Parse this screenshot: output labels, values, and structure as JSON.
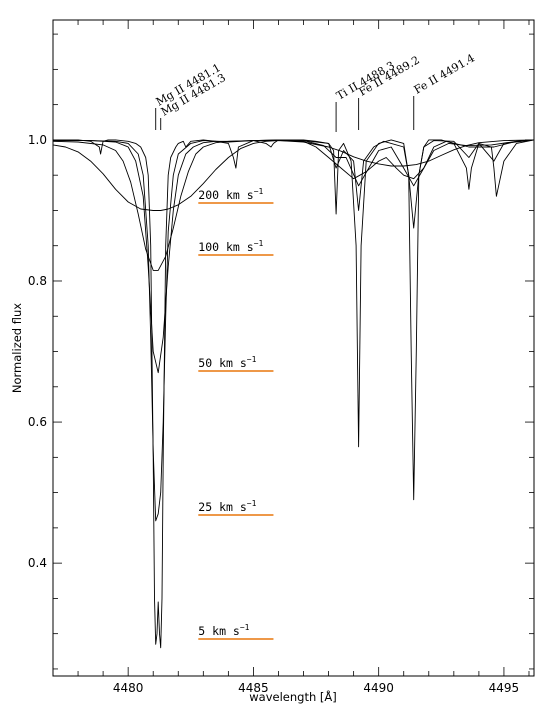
{
  "chart_data": {
    "type": "line",
    "xlabel": "wavelength [Å]",
    "ylabel": "Normalized flux",
    "xlim": [
      4477,
      4496.2
    ],
    "ylim": [
      0.24,
      1.17
    ],
    "xticks": [
      4480,
      4485,
      4490,
      4495
    ],
    "yticks": [
      0.4,
      0.6,
      0.8,
      1.0
    ],
    "ytick_labels": [
      "0.4",
      "0.6",
      "0.8",
      "1.0"
    ],
    "line_identifications": [
      {
        "label": "Mg II 4481.1",
        "wavelength": 4481.1
      },
      {
        "label": "Mg II 4481.3",
        "wavelength": 4481.3
      },
      {
        "label": "Ti II 4488.3",
        "wavelength": 4488.3
      },
      {
        "label": "Fe II 4489.2",
        "wavelength": 4489.2
      },
      {
        "label": "Fe II 4491.4",
        "wavelength": 4491.4
      }
    ],
    "velocity_labels": [
      {
        "text": "200 km s",
        "exp": "−1",
        "flux": 0.9,
        "color": "#e8760b"
      },
      {
        "text": "100 km s",
        "exp": "−1",
        "flux": 0.825,
        "color": "#e8760b"
      },
      {
        "text": "50 km s",
        "exp": "−1",
        "flux": 0.67,
        "color": "#e8760b"
      },
      {
        "text": "25 km s",
        "exp": "−1",
        "flux": 0.465,
        "color": "#e8760b"
      },
      {
        "text": "5 km s",
        "exp": "−1",
        "flux": 0.3,
        "color": "#e8760b"
      }
    ],
    "series": [
      {
        "vsini": 5,
        "x": [
          4477.0,
          4477.5,
          4478.0,
          4478.5,
          4478.85,
          4478.9,
          4478.95,
          4479.0,
          4479.2,
          4479.5,
          4480.0,
          4480.3,
          4480.5,
          4480.7,
          4480.8,
          4480.9,
          4481.0,
          4481.05,
          4481.1,
          4481.15,
          4481.2,
          4481.25,
          4481.3,
          4481.35,
          4481.4,
          4481.5,
          4481.6,
          4481.7,
          4481.9,
          4482.0,
          4482.2,
          4482.3,
          4482.5,
          4483.0,
          4483.5,
          4484.0,
          4484.2,
          4484.3,
          4484.4,
          4485.0,
          4485.5,
          4485.7,
          4485.8,
          4486.0,
          4486.5,
          4487.0,
          4487.5,
          4488.0,
          4488.2,
          4488.3,
          4488.4,
          4488.6,
          4488.9,
          4489.1,
          4489.2,
          4489.3,
          4489.5,
          4490.0,
          4490.5,
          4491.0,
          4491.2,
          4491.3,
          4491.4,
          4491.5,
          4491.6,
          4491.8,
          4492.0,
          4492.5,
          4493.0,
          4493.5,
          4493.6,
          4493.7,
          4494.0,
          4494.5,
          4494.6,
          4494.7,
          4495.0,
          4495.5,
          4496.2
        ],
        "y": [
          1.0,
          1.0,
          1.0,
          0.998,
          0.99,
          0.98,
          0.99,
          0.998,
          1.0,
          1.0,
          0.998,
          0.995,
          0.99,
          0.975,
          0.95,
          0.85,
          0.55,
          0.35,
          0.285,
          0.3,
          0.345,
          0.3,
          0.28,
          0.35,
          0.55,
          0.85,
          0.95,
          0.975,
          0.99,
          0.995,
          0.998,
          0.99,
          0.998,
          1.0,
          0.998,
          0.995,
          0.975,
          0.96,
          0.99,
          0.999,
          0.995,
          0.99,
          0.995,
          1.0,
          1.0,
          1.0,
          0.998,
          0.995,
          0.985,
          0.895,
          0.985,
          0.995,
          0.97,
          0.85,
          0.565,
          0.85,
          0.97,
          0.995,
          1.0,
          0.995,
          0.95,
          0.7,
          0.49,
          0.7,
          0.95,
          0.99,
          1.0,
          1.0,
          0.995,
          0.96,
          0.93,
          0.96,
          0.995,
          0.99,
          0.96,
          0.92,
          0.97,
          0.995,
          1.0
        ]
      },
      {
        "vsini": 25,
        "x": [
          4477.0,
          4478.5,
          4479.5,
          4480.0,
          4480.4,
          4480.6,
          4480.8,
          4480.9,
          4481.0,
          4481.1,
          4481.2,
          4481.3,
          4481.4,
          4481.5,
          4481.6,
          4481.8,
          4482.0,
          4482.5,
          4483.0,
          4484.0,
          4485.0,
          4486.0,
          4487.0,
          4488.0,
          4488.3,
          4488.6,
          4489.0,
          4489.2,
          4489.4,
          4489.8,
          4490.2,
          4491.0,
          4491.2,
          4491.4,
          4491.6,
          4491.8,
          4492.2,
          4493.0,
          4493.6,
          4494.0,
          4494.6,
          4495.0,
          4496.2
        ],
        "y": [
          1.0,
          0.999,
          0.998,
          0.995,
          0.98,
          0.95,
          0.85,
          0.72,
          0.56,
          0.46,
          0.47,
          0.5,
          0.6,
          0.75,
          0.87,
          0.95,
          0.98,
          0.995,
          0.999,
          0.997,
          0.999,
          1.0,
          0.999,
          0.995,
          0.96,
          0.985,
          0.97,
          0.9,
          0.97,
          0.99,
          0.998,
          0.99,
          0.95,
          0.875,
          0.95,
          0.99,
          0.999,
          0.998,
          0.975,
          0.995,
          0.97,
          0.995,
          1.0
        ]
      },
      {
        "vsini": 50,
        "x": [
          4477.0,
          4478.5,
          4479.5,
          4480.0,
          4480.3,
          4480.6,
          4480.8,
          4481.0,
          4481.2,
          4481.4,
          4481.6,
          4481.8,
          4482.0,
          4482.3,
          4482.6,
          4483.0,
          4483.5,
          4484.0,
          4485.0,
          4486.0,
          4487.0,
          4487.8,
          4488.3,
          4488.7,
          4489.2,
          4489.6,
          4490.0,
          4490.5,
          4491.0,
          4491.4,
          4491.8,
          4492.2,
          4492.7,
          4493.6,
          4494.6,
          4495.5,
          4496.2
        ],
        "y": [
          0.999,
          0.999,
          0.997,
          0.99,
          0.97,
          0.92,
          0.82,
          0.7,
          0.67,
          0.72,
          0.82,
          0.9,
          0.95,
          0.98,
          0.99,
          0.996,
          0.998,
          0.998,
          0.999,
          1.0,
          0.999,
          0.992,
          0.975,
          0.975,
          0.935,
          0.96,
          0.985,
          0.99,
          0.96,
          0.935,
          0.96,
          0.99,
          0.998,
          0.99,
          0.99,
          0.998,
          1.0
        ]
      },
      {
        "vsini": 100,
        "x": [
          4477.0,
          4478.0,
          4479.0,
          4479.5,
          4479.8,
          4480.1,
          4480.4,
          4480.7,
          4481.0,
          4481.2,
          4481.5,
          4481.8,
          4482.1,
          4482.4,
          4482.7,
          4483.0,
          4483.5,
          4484.0,
          4485.0,
          4486.0,
          4487.0,
          4487.5,
          4488.0,
          4488.5,
          4489.0,
          4489.5,
          4490.0,
          4490.3,
          4490.7,
          4491.0,
          4491.4,
          4491.8,
          4492.2,
          4492.8,
          4493.5,
          4494.5,
          4495.5,
          4496.2
        ],
        "y": [
          0.998,
          0.997,
          0.993,
          0.985,
          0.97,
          0.94,
          0.895,
          0.845,
          0.815,
          0.815,
          0.835,
          0.875,
          0.92,
          0.955,
          0.98,
          0.99,
          0.996,
          0.998,
          0.999,
          0.999,
          0.998,
          0.99,
          0.975,
          0.96,
          0.945,
          0.955,
          0.97,
          0.975,
          0.96,
          0.95,
          0.945,
          0.96,
          0.985,
          0.995,
          0.992,
          0.993,
          0.998,
          1.0
        ]
      },
      {
        "vsini": 200,
        "x": [
          4477.0,
          4477.5,
          4478.0,
          4478.5,
          4479.0,
          4479.5,
          4480.0,
          4480.5,
          4481.0,
          4481.3,
          4481.6,
          4482.0,
          4482.5,
          4483.0,
          4483.5,
          4484.0,
          4484.5,
          4485.0,
          4485.5,
          4486.0,
          4487.0,
          4488.0,
          4488.5,
          4489.0,
          4489.5,
          4490.0,
          4490.5,
          4491.0,
          4491.5,
          4492.0,
          4492.5,
          4493.0,
          4493.5,
          4494.0,
          4495.0,
          4496.2
        ],
        "y": [
          0.993,
          0.99,
          0.983,
          0.97,
          0.952,
          0.93,
          0.912,
          0.902,
          0.9,
          0.9,
          0.902,
          0.908,
          0.92,
          0.938,
          0.958,
          0.975,
          0.988,
          0.995,
          0.998,
          0.999,
          0.997,
          0.99,
          0.984,
          0.976,
          0.97,
          0.966,
          0.963,
          0.963,
          0.965,
          0.97,
          0.978,
          0.986,
          0.992,
          0.996,
          0.999,
          1.0
        ]
      }
    ]
  }
}
